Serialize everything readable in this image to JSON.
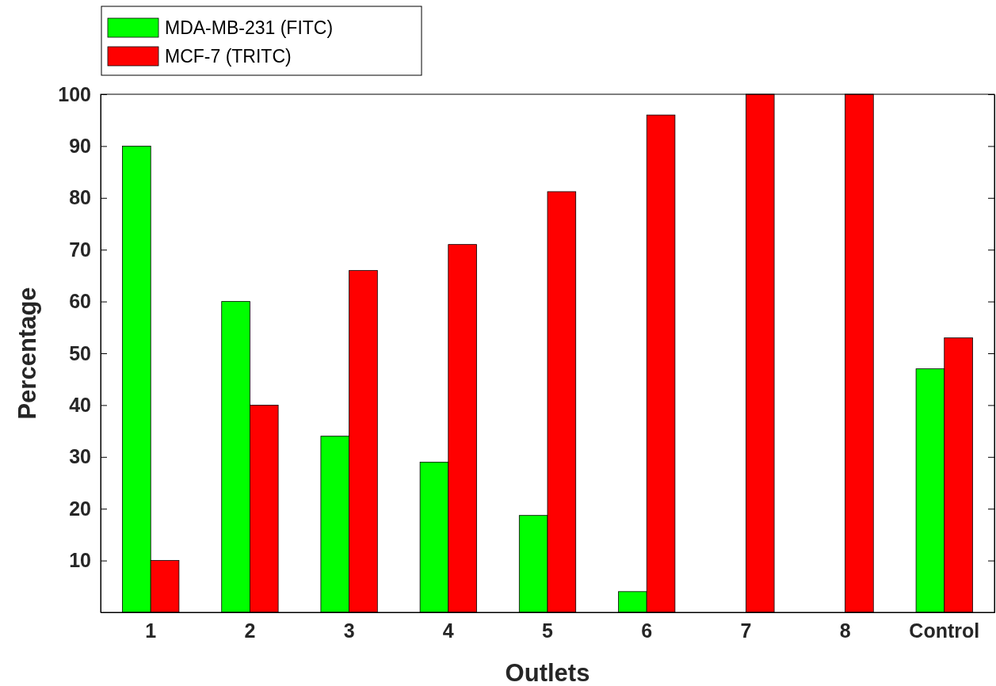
{
  "chart_data": {
    "type": "bar",
    "xlabel": "Outlets",
    "ylabel": "Percentage",
    "categories": [
      "1",
      "2",
      "3",
      "4",
      "5",
      "6",
      "7",
      "8",
      "Control"
    ],
    "series": [
      {
        "name": "MDA-MB-231 (FITC)",
        "color": "#00ff00",
        "values": [
          90,
          60,
          34,
          29,
          18.7,
          4,
          0,
          0,
          47
        ]
      },
      {
        "name": "MCF-7 (TRITC)",
        "color": "#ff0000",
        "values": [
          10,
          40,
          66,
          71,
          81.2,
          96,
          100,
          100,
          53
        ]
      }
    ],
    "ylim": [
      0,
      100
    ],
    "yticks": [
      10,
      20,
      30,
      40,
      50,
      60,
      70,
      80,
      90,
      100
    ],
    "grid": false,
    "legend": "top left"
  }
}
